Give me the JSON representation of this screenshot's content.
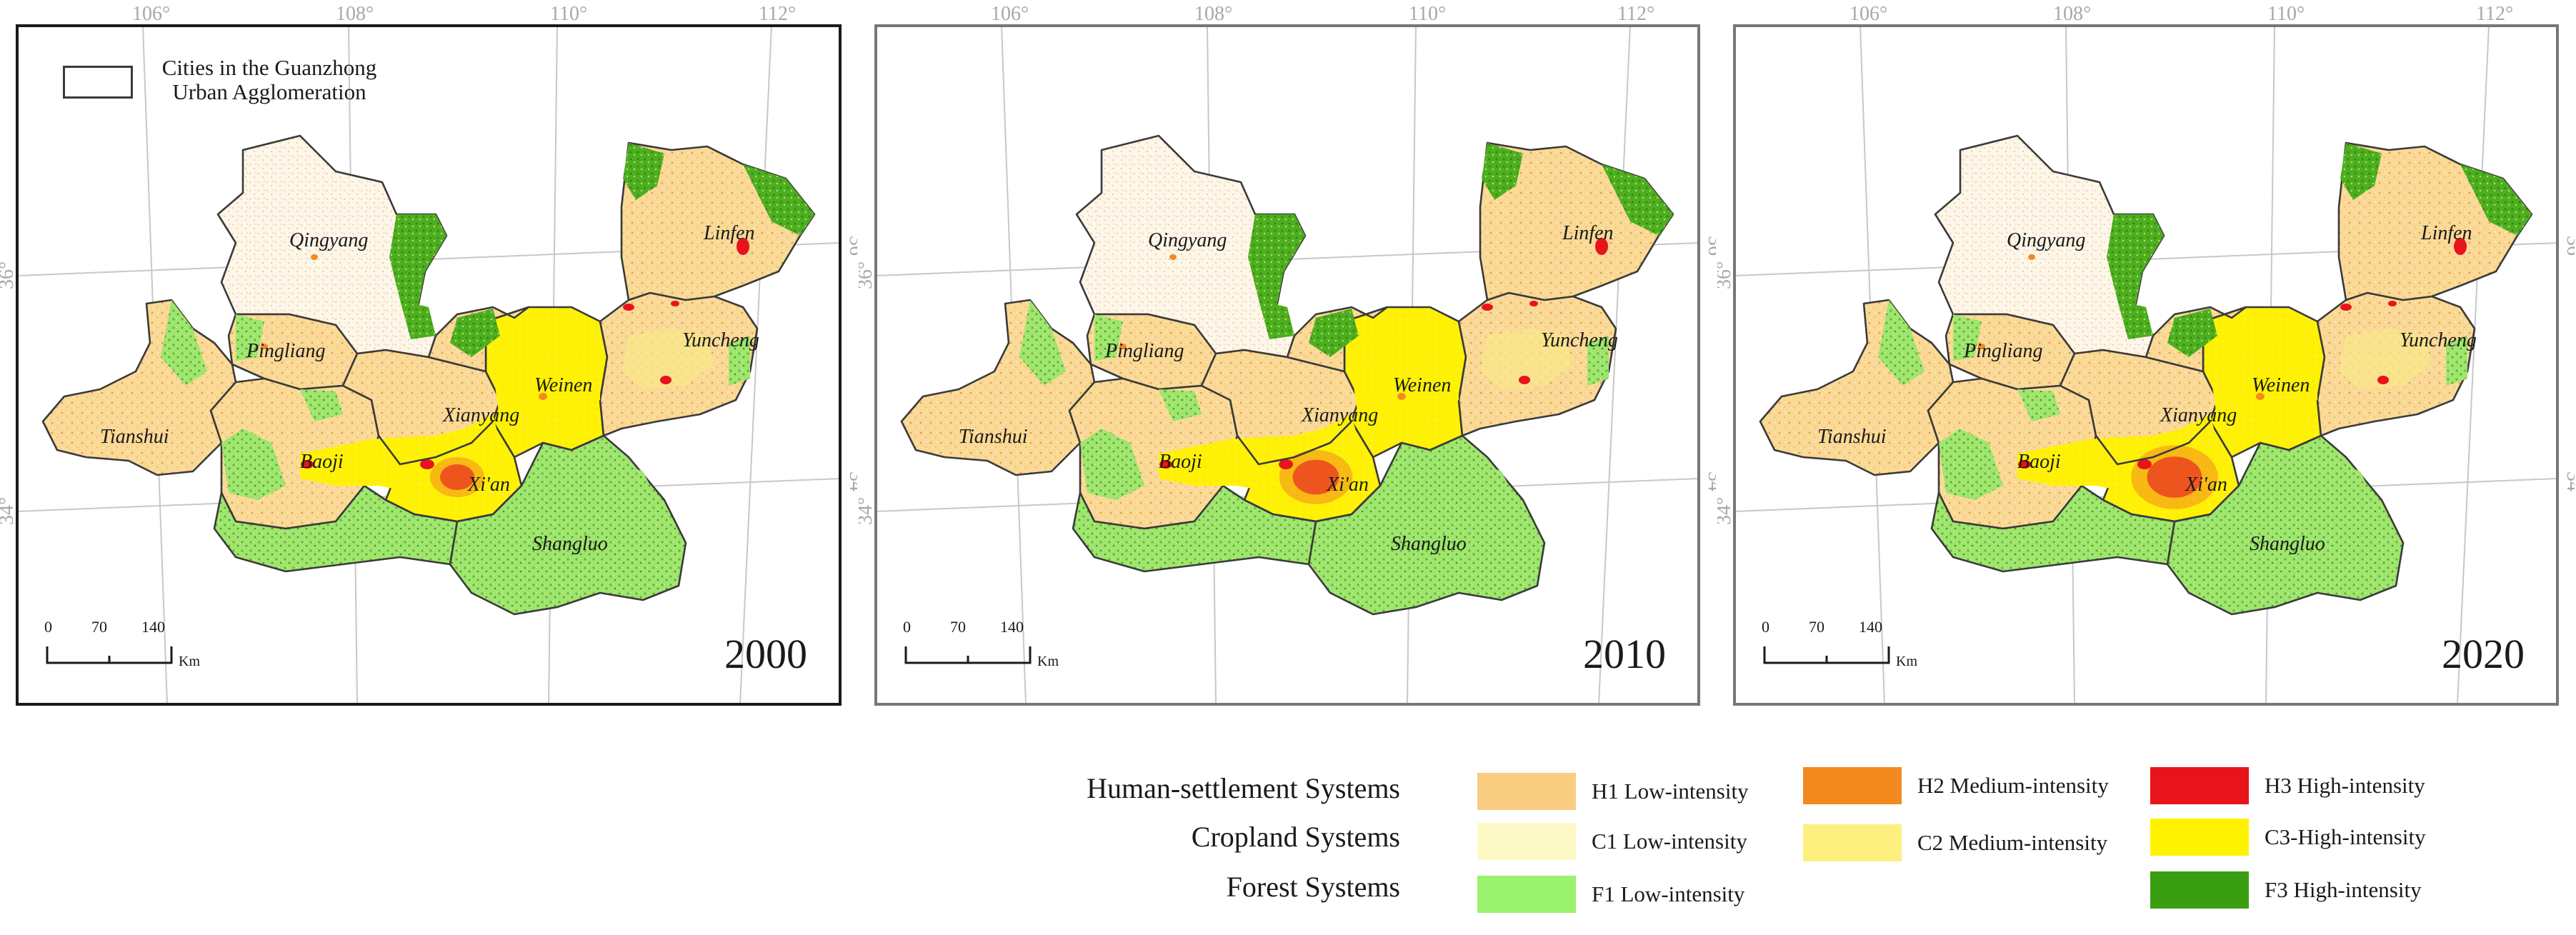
{
  "legend_inset": {
    "line1": "Cities in the Guanzhong",
    "line2": "Urban Agglomeration"
  },
  "coordinates": {
    "lon_labels": [
      "106°",
      "108°",
      "110°",
      "112°"
    ],
    "lat_labels": [
      "34°",
      "36°"
    ]
  },
  "scale_bar": {
    "ticks": [
      "0",
      "70",
      "140"
    ],
    "unit": "Km"
  },
  "cities": [
    "Qingyang",
    "Linfen",
    "Pingliang",
    "Yuncheng",
    "Weinen",
    "Tianshui",
    "Xianyang",
    "Baoji",
    "Xi'an",
    "Shangluo"
  ],
  "panels": [
    {
      "year": "2000"
    },
    {
      "year": "2010"
    },
    {
      "year": "2020"
    }
  ],
  "legend": {
    "categories": [
      "Human-settlement Systems",
      "Cropland Systems",
      "Forest Systems"
    ],
    "items": [
      {
        "label": "H1 Low-intensity",
        "color": "#f8cd82"
      },
      {
        "label": "H2 Medium-intensity",
        "color": "#f28a20"
      },
      {
        "label": "H3 High-intensity",
        "color": "#e8141b"
      },
      {
        "label": "C1 Low-intensity",
        "color": "#fdf9c6"
      },
      {
        "label": "C2 Medium-intensity",
        "color": "#fdf07e"
      },
      {
        "label": "C3-High-intensity",
        "color": "#fff200"
      },
      {
        "label": "F1 Low-intensity",
        "color": "#9af26d"
      },
      {
        "label": "F3 High-intensity",
        "color": "#3a9e12"
      }
    ]
  }
}
